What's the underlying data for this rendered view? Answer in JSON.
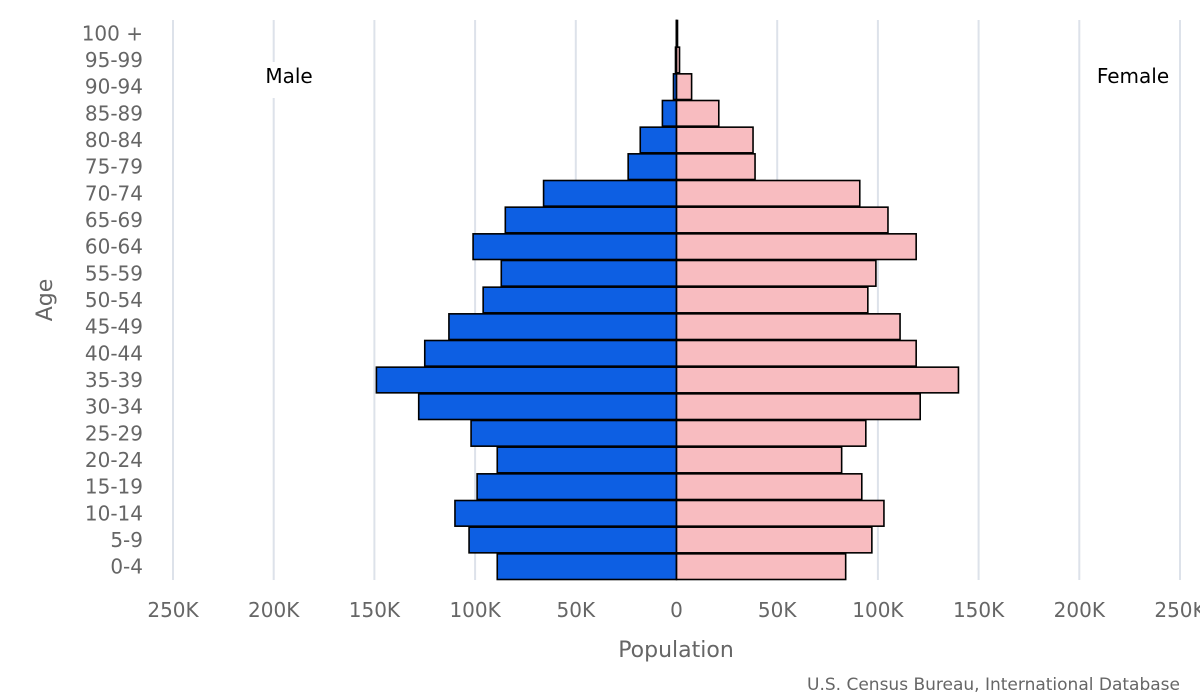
{
  "chart_data": {
    "type": "bar",
    "orientation": "horizontal",
    "subtype": "population-pyramid",
    "categories": [
      "0-4",
      "5-9",
      "10-14",
      "15-19",
      "20-24",
      "25-29",
      "30-34",
      "35-39",
      "40-44",
      "45-49",
      "50-54",
      "55-59",
      "60-64",
      "65-69",
      "70-74",
      "75-79",
      "80-84",
      "85-89",
      "90-94",
      "95-99",
      "100 +"
    ],
    "series": [
      {
        "name": "Male",
        "color": "#0d5fe3",
        "values": [
          89000,
          103000,
          110000,
          99000,
          89000,
          102000,
          128000,
          149000,
          125000,
          113000,
          96000,
          87000,
          101000,
          85000,
          66000,
          24000,
          18000,
          7000,
          1500,
          500,
          100
        ]
      },
      {
        "name": "Female",
        "color": "#f8bcc0",
        "values": [
          84000,
          97000,
          103000,
          92000,
          82000,
          94000,
          121000,
          140000,
          119000,
          111000,
          95000,
          99000,
          119000,
          105000,
          91000,
          39000,
          38000,
          21000,
          7500,
          1500,
          500
        ]
      }
    ],
    "xlim": [
      -250000,
      250000
    ],
    "xticks": [
      -250000,
      -200000,
      -150000,
      -100000,
      -50000,
      0,
      50000,
      100000,
      150000,
      200000,
      250000
    ],
    "xtick_labels": [
      "250K",
      "200K",
      "150K",
      "100K",
      "50K",
      "0",
      "50K",
      "100K",
      "150K",
      "200K",
      "250K"
    ],
    "xlabel": "Population",
    "ylabel": "Age",
    "legend": {
      "left_label": "Male",
      "right_label": "Female",
      "placement": "top"
    },
    "grid": true,
    "source": "U.S. Census Bureau, International Database"
  }
}
